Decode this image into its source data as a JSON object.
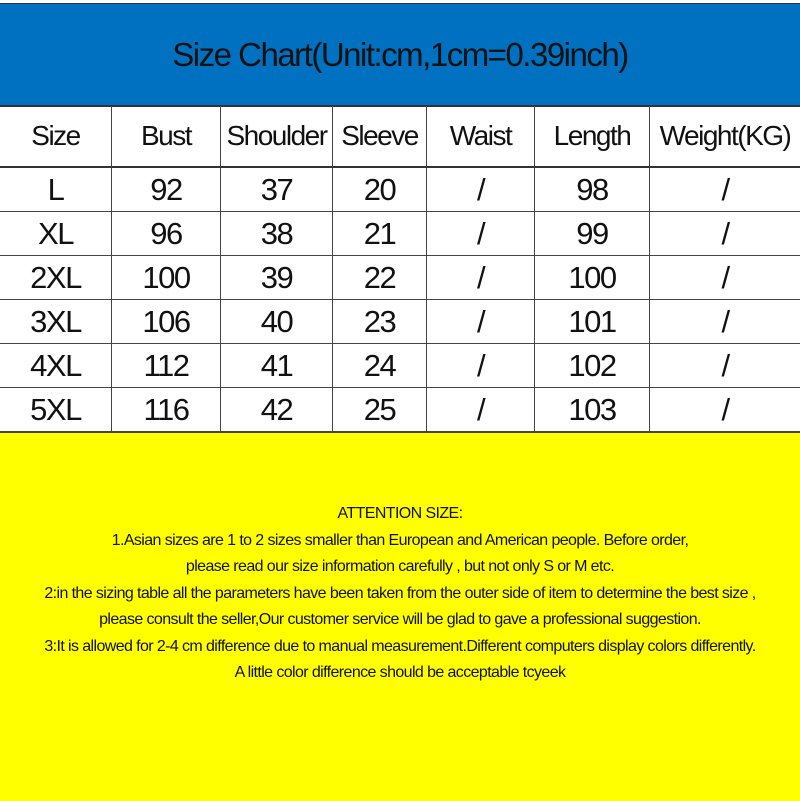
{
  "title": "Size Chart(Unit:cm,1cm=0.39inch)",
  "colors": {
    "header_bg": "#0070C0",
    "notes_bg": "#FFFF00"
  },
  "table": {
    "headers": [
      "Size",
      "Bust",
      "Shoulder",
      "Sleeve",
      "Waist",
      "Length",
      "Weight(KG)"
    ],
    "rows": [
      [
        "L",
        "92",
        "37",
        "20",
        "/",
        "98",
        "/"
      ],
      [
        "XL",
        "96",
        "38",
        "21",
        "/",
        "99",
        "/"
      ],
      [
        "2XL",
        "100",
        "39",
        "22",
        "/",
        "100",
        "/"
      ],
      [
        "3XL",
        "106",
        "40",
        "23",
        "/",
        "101",
        "/"
      ],
      [
        "4XL",
        "112",
        "41",
        "24",
        "/",
        "102",
        "/"
      ],
      [
        "5XL",
        "116",
        "42",
        "25",
        "/",
        "103",
        "/"
      ]
    ]
  },
  "notes": [
    "ATTENTION SIZE:",
    "1.Asian sizes are 1 to 2 sizes smaller than European and American people. Before order,",
    "please read our size information carefully ,  but not only S or M etc.",
    "2:in the sizing table all the parameters have been taken from the outer side of item to determine the best size ,",
    "please consult the seller,Our customer service will be glad to gave a professional suggestion.",
    "3:It is allowed for 2-4 cm difference due to manual measurement.Different computers display colors differently.",
    "A little color difference should be acceptable tcyeek"
  ]
}
